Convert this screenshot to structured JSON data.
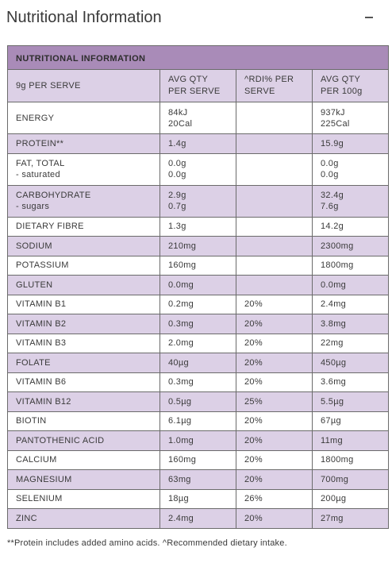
{
  "header": {
    "title": "Nutritional Information",
    "collapse_icon": "minus-icon"
  },
  "table": {
    "title": "NUTRITIONAL INFORMATION",
    "colors": {
      "title_bg": "#a98bb8",
      "shade_bg": "#dcd0e6",
      "border": "#6b6b6b"
    },
    "columns": [
      [
        "9g PER SERVE"
      ],
      [
        "AVG QTY",
        "PER SERVE"
      ],
      [
        "^RDI% PER",
        "SERVE"
      ],
      [
        "AVG QTY",
        "PER 100g"
      ]
    ],
    "rows": [
      {
        "name": [
          "ENERGY"
        ],
        "serve": [
          "84kJ",
          "20Cal"
        ],
        "rdi": [
          ""
        ],
        "per100": [
          "937kJ",
          "225Cal"
        ],
        "shaded": false
      },
      {
        "name": [
          "PROTEIN**"
        ],
        "serve": [
          "1.4g"
        ],
        "rdi": [
          ""
        ],
        "per100": [
          "15.9g"
        ],
        "shaded": true
      },
      {
        "name": [
          "FAT, TOTAL",
          " - saturated"
        ],
        "serve": [
          "0.0g",
          "0.0g"
        ],
        "rdi": [
          ""
        ],
        "per100": [
          "0.0g",
          "0.0g"
        ],
        "shaded": false
      },
      {
        "name": [
          "CARBOHYDRATE",
          " - sugars"
        ],
        "serve": [
          "2.9g",
          "0.7g"
        ],
        "rdi": [
          ""
        ],
        "per100": [
          "32.4g",
          "7.6g"
        ],
        "shaded": true
      },
      {
        "name": [
          "DIETARY FIBRE"
        ],
        "serve": [
          "1.3g"
        ],
        "rdi": [
          ""
        ],
        "per100": [
          "14.2g"
        ],
        "shaded": false
      },
      {
        "name": [
          "SODIUM"
        ],
        "serve": [
          "210mg"
        ],
        "rdi": [
          ""
        ],
        "per100": [
          "2300mg"
        ],
        "shaded": true
      },
      {
        "name": [
          "POTASSIUM"
        ],
        "serve": [
          "160mg"
        ],
        "rdi": [
          ""
        ],
        "per100": [
          "1800mg"
        ],
        "shaded": false
      },
      {
        "name": [
          "GLUTEN"
        ],
        "serve": [
          "0.0mg"
        ],
        "rdi": [
          ""
        ],
        "per100": [
          "0.0mg"
        ],
        "shaded": true
      },
      {
        "name": [
          "VITAMIN B1"
        ],
        "serve": [
          "0.2mg"
        ],
        "rdi": [
          "20%"
        ],
        "per100": [
          "2.4mg"
        ],
        "shaded": false
      },
      {
        "name": [
          "VITAMIN B2"
        ],
        "serve": [
          "0.3mg"
        ],
        "rdi": [
          "20%"
        ],
        "per100": [
          "3.8mg"
        ],
        "shaded": true
      },
      {
        "name": [
          "VITAMIN B3"
        ],
        "serve": [
          "2.0mg"
        ],
        "rdi": [
          "20%"
        ],
        "per100": [
          "22mg"
        ],
        "shaded": false
      },
      {
        "name": [
          "FOLATE"
        ],
        "serve": [
          "40µg"
        ],
        "rdi": [
          "20%"
        ],
        "per100": [
          "450µg"
        ],
        "shaded": true
      },
      {
        "name": [
          "VITAMIN B6"
        ],
        "serve": [
          "0.3mg"
        ],
        "rdi": [
          "20%"
        ],
        "per100": [
          "3.6mg"
        ],
        "shaded": false
      },
      {
        "name": [
          "VITAMIN B12"
        ],
        "serve": [
          "0.5µg"
        ],
        "rdi": [
          "25%"
        ],
        "per100": [
          "5.5µg"
        ],
        "shaded": true
      },
      {
        "name": [
          "BIOTIN"
        ],
        "serve": [
          "6.1µg"
        ],
        "rdi": [
          "20%"
        ],
        "per100": [
          "67µg"
        ],
        "shaded": false
      },
      {
        "name": [
          "PANTOTHENIC ACID"
        ],
        "serve": [
          "1.0mg"
        ],
        "rdi": [
          "20%"
        ],
        "per100": [
          "11mg"
        ],
        "shaded": true
      },
      {
        "name": [
          "CALCIUM"
        ],
        "serve": [
          "160mg"
        ],
        "rdi": [
          "20%"
        ],
        "per100": [
          "1800mg"
        ],
        "shaded": false
      },
      {
        "name": [
          "MAGNESIUM"
        ],
        "serve": [
          "63mg"
        ],
        "rdi": [
          "20%"
        ],
        "per100": [
          "700mg"
        ],
        "shaded": true
      },
      {
        "name": [
          "SELENIUM"
        ],
        "serve": [
          "18µg"
        ],
        "rdi": [
          "26%"
        ],
        "per100": [
          "200µg"
        ],
        "shaded": false
      },
      {
        "name": [
          "ZINC"
        ],
        "serve": [
          "2.4mg"
        ],
        "rdi": [
          "20%"
        ],
        "per100": [
          "27mg"
        ],
        "shaded": true
      }
    ]
  },
  "footnote": "**Protein includes added amino acids. ^Recommended dietary intake."
}
